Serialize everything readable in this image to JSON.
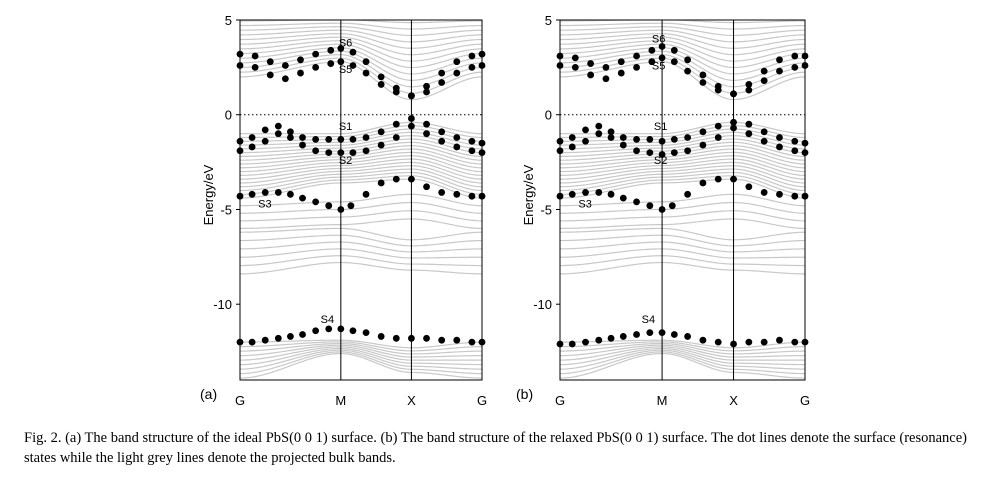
{
  "caption": "Fig. 2. (a) The band structure of the ideal PbS(0 0 1) surface. (b) The band structure of the relaxed PbS(0 0 1) surface. The dot lines denote the surface (resonance) states while the light grey lines denote the projected bulk bands.",
  "colors": {
    "bulk_band": "#c8c8c8",
    "surface_dot": "#000000",
    "axis": "#000000",
    "fermi_line": "#000000"
  },
  "chart_data": [
    {
      "type": "line",
      "panel_label": "(a)",
      "xlabel": "",
      "ylabel": "Energy/eV",
      "ylim": [
        -14,
        5
      ],
      "yticks": [
        5,
        0,
        -5,
        -10
      ],
      "k_points": [
        "G",
        "M",
        "X",
        "G"
      ],
      "k_positions": [
        0,
        1,
        1.7,
        2.4
      ],
      "fermi_level": 0,
      "fermi_line_style": "dotted",
      "bulk_band_groups": [
        {
          "name": "conduction",
          "node_ranges": [
            [
              2.0,
              5.2
            ],
            [
              2.8,
              5.2
            ],
            [
              0.8,
              5.2
            ],
            [
              2.0,
              5.2
            ]
          ],
          "count": 14
        },
        {
          "name": "valence-upper",
          "node_ranges": [
            [
              -4.4,
              -1.0
            ],
            [
              -3.6,
              -1.0
            ],
            [
              -3.4,
              -0.4
            ],
            [
              -4.4,
              -1.0
            ]
          ],
          "count": 18
        },
        {
          "name": "valence-mid",
          "node_ranges": [
            [
              -6.0,
              -4.8
            ],
            [
              -5.8,
              -4.6
            ],
            [
              -5.5,
              -4.2
            ],
            [
              -6.0,
              -4.8
            ]
          ],
          "count": 4
        },
        {
          "name": "valence-lower",
          "node_ranges": [
            [
              -8.4,
              -6.2
            ],
            [
              -7.8,
              -6.0
            ],
            [
              -8.2,
              -6.6
            ],
            [
              -8.4,
              -6.2
            ]
          ],
          "count": 6
        },
        {
          "name": "semicore",
          "node_ranges": [
            [
              -13.9,
              -12.0
            ],
            [
              -12.6,
              -11.9
            ],
            [
              -13.6,
              -12.3
            ],
            [
              -13.9,
              -12.0
            ]
          ],
          "count": 9
        }
      ],
      "surface_states": [
        {
          "label": "S6",
          "label_x": 0.98,
          "label_y": 3.6,
          "x": [
            0,
            0.15,
            0.3,
            0.45,
            0.6,
            0.75,
            0.9,
            1.0,
            1.12,
            1.25,
            1.4,
            1.55,
            1.7,
            1.85,
            2.0,
            2.15,
            2.3,
            2.4
          ],
          "y": [
            3.2,
            3.1,
            2.8,
            2.6,
            2.9,
            3.2,
            3.4,
            3.5,
            3.3,
            2.8,
            2.0,
            1.4,
            1.0,
            1.5,
            2.2,
            2.8,
            3.1,
            3.2
          ]
        },
        {
          "label": "S5",
          "label_x": 0.98,
          "label_y": 2.2,
          "x": [
            0,
            0.15,
            0.3,
            0.45,
            0.6,
            0.75,
            0.9,
            1.0,
            1.12,
            1.25,
            1.4,
            1.55,
            1.7,
            1.85,
            2.0,
            2.15,
            2.3,
            2.4
          ],
          "y": [
            2.6,
            2.5,
            2.1,
            1.9,
            2.2,
            2.5,
            2.7,
            2.8,
            2.6,
            2.2,
            1.6,
            1.2,
            1.0,
            1.2,
            1.7,
            2.2,
            2.5,
            2.6
          ]
        },
        {
          "label": "S1",
          "label_x": 0.98,
          "label_y": -0.8,
          "x": [
            0,
            0.12,
            0.25,
            0.38,
            0.5,
            0.62,
            0.75,
            0.88,
            1.0,
            1.12,
            1.25,
            1.4,
            1.55,
            1.7,
            1.85,
            2.0,
            2.15,
            2.3,
            2.4
          ],
          "y": [
            -1.4,
            -1.2,
            -0.8,
            -0.6,
            -0.9,
            -1.2,
            -1.3,
            -1.3,
            -1.3,
            -1.3,
            -1.2,
            -0.9,
            -0.5,
            -0.2,
            -0.5,
            -0.9,
            -1.2,
            -1.4,
            -1.5
          ]
        },
        {
          "label": "S2",
          "label_x": 0.98,
          "label_y": -2.6,
          "x": [
            0,
            0.12,
            0.25,
            0.38,
            0.5,
            0.62,
            0.75,
            0.88,
            1.0,
            1.12,
            1.25,
            1.4,
            1.55,
            1.7,
            1.85,
            2.0,
            2.15,
            2.3,
            2.4
          ],
          "y": [
            -1.9,
            -1.7,
            -1.4,
            -1.0,
            -1.2,
            -1.6,
            -1.9,
            -2.0,
            -2.0,
            -2.0,
            -1.9,
            -1.6,
            -1.2,
            -0.6,
            -1.0,
            -1.4,
            -1.7,
            -1.9,
            -2.0
          ]
        },
        {
          "label": "S3",
          "label_x": 0.18,
          "label_y": -4.9,
          "x": [
            0,
            0.12,
            0.25,
            0.38,
            0.5,
            0.62,
            0.75,
            0.88,
            1.0,
            1.1,
            1.25,
            1.4,
            1.55,
            1.7,
            1.85,
            2.0,
            2.15,
            2.3,
            2.4
          ],
          "y": [
            -4.3,
            -4.2,
            -4.1,
            -4.1,
            -4.2,
            -4.4,
            -4.6,
            -4.8,
            -5.0,
            -4.8,
            -4.2,
            -3.6,
            -3.4,
            -3.4,
            -3.8,
            -4.1,
            -4.2,
            -4.3,
            -4.3
          ]
        },
        {
          "label": "S4",
          "label_x": 0.8,
          "label_y": -11.0,
          "x": [
            0,
            0.12,
            0.25,
            0.38,
            0.5,
            0.62,
            0.75,
            0.88,
            1.0,
            1.12,
            1.25,
            1.4,
            1.55,
            1.7,
            1.85,
            2.0,
            2.15,
            2.3,
            2.4
          ],
          "y": [
            -12.0,
            -12.0,
            -11.9,
            -11.8,
            -11.7,
            -11.6,
            -11.4,
            -11.3,
            -11.3,
            -11.4,
            -11.5,
            -11.7,
            -11.8,
            -11.8,
            -11.8,
            -11.9,
            -11.9,
            -12.0,
            -12.0
          ]
        }
      ]
    },
    {
      "type": "line",
      "panel_label": "(b)",
      "xlabel": "",
      "ylabel": "Energy/eV",
      "ylim": [
        -14,
        5
      ],
      "yticks": [
        5,
        0,
        -5,
        -10
      ],
      "k_points": [
        "G",
        "M",
        "X",
        "G"
      ],
      "k_positions": [
        0,
        1,
        1.7,
        2.4
      ],
      "fermi_level": 0,
      "fermi_line_style": "dotted",
      "bulk_band_groups": [
        {
          "name": "conduction",
          "node_ranges": [
            [
              2.0,
              5.2
            ],
            [
              2.8,
              5.2
            ],
            [
              0.8,
              5.2
            ],
            [
              2.0,
              5.2
            ]
          ],
          "count": 14
        },
        {
          "name": "valence-upper",
          "node_ranges": [
            [
              -4.4,
              -1.0
            ],
            [
              -3.6,
              -1.0
            ],
            [
              -3.4,
              -0.4
            ],
            [
              -4.4,
              -1.0
            ]
          ],
          "count": 18
        },
        {
          "name": "valence-mid",
          "node_ranges": [
            [
              -6.0,
              -4.8
            ],
            [
              -5.8,
              -4.6
            ],
            [
              -5.5,
              -4.2
            ],
            [
              -6.0,
              -4.8
            ]
          ],
          "count": 4
        },
        {
          "name": "valence-lower",
          "node_ranges": [
            [
              -8.4,
              -6.2
            ],
            [
              -7.8,
              -6.0
            ],
            [
              -8.2,
              -6.6
            ],
            [
              -8.4,
              -6.2
            ]
          ],
          "count": 6
        },
        {
          "name": "semicore",
          "node_ranges": [
            [
              -13.9,
              -12.0
            ],
            [
              -12.6,
              -11.9
            ],
            [
              -13.6,
              -12.3
            ],
            [
              -13.9,
              -12.0
            ]
          ],
          "count": 9
        }
      ],
      "surface_states": [
        {
          "label": "S6",
          "label_x": 0.9,
          "label_y": 3.8,
          "x": [
            0,
            0.15,
            0.3,
            0.45,
            0.6,
            0.75,
            0.9,
            1.0,
            1.12,
            1.25,
            1.4,
            1.55,
            1.7,
            1.85,
            2.0,
            2.15,
            2.3,
            2.4
          ],
          "y": [
            3.1,
            3.0,
            2.7,
            2.5,
            2.8,
            3.1,
            3.4,
            3.6,
            3.4,
            2.9,
            2.1,
            1.5,
            1.1,
            1.6,
            2.3,
            2.9,
            3.1,
            3.1
          ]
        },
        {
          "label": "S5",
          "label_x": 0.9,
          "label_y": 2.4,
          "x": [
            0,
            0.15,
            0.3,
            0.45,
            0.6,
            0.75,
            0.9,
            1.0,
            1.12,
            1.25,
            1.4,
            1.55,
            1.7,
            1.85,
            2.0,
            2.15,
            2.3,
            2.4
          ],
          "y": [
            2.6,
            2.5,
            2.1,
            1.9,
            2.2,
            2.5,
            2.8,
            3.0,
            2.8,
            2.3,
            1.7,
            1.3,
            1.1,
            1.3,
            1.8,
            2.3,
            2.5,
            2.6
          ]
        },
        {
          "label": "S1",
          "label_x": 0.92,
          "label_y": -0.8,
          "x": [
            0,
            0.12,
            0.25,
            0.38,
            0.5,
            0.62,
            0.75,
            0.88,
            1.0,
            1.12,
            1.25,
            1.4,
            1.55,
            1.7,
            1.85,
            2.0,
            2.15,
            2.3,
            2.4
          ],
          "y": [
            -1.4,
            -1.2,
            -0.8,
            -0.6,
            -0.9,
            -1.2,
            -1.3,
            -1.3,
            -1.4,
            -1.3,
            -1.2,
            -0.9,
            -0.6,
            -0.4,
            -0.5,
            -0.9,
            -1.2,
            -1.4,
            -1.5
          ]
        },
        {
          "label": "S2",
          "label_x": 0.92,
          "label_y": -2.6,
          "x": [
            0,
            0.12,
            0.25,
            0.38,
            0.5,
            0.62,
            0.75,
            0.88,
            1.0,
            1.12,
            1.25,
            1.4,
            1.55,
            1.7,
            1.85,
            2.0,
            2.15,
            2.3,
            2.4
          ],
          "y": [
            -1.9,
            -1.7,
            -1.4,
            -1.0,
            -1.2,
            -1.6,
            -1.9,
            -2.0,
            -2.1,
            -2.0,
            -1.9,
            -1.6,
            -1.2,
            -0.7,
            -1.0,
            -1.4,
            -1.7,
            -1.9,
            -2.0
          ]
        },
        {
          "label": "S3",
          "label_x": 0.18,
          "label_y": -4.9,
          "x": [
            0,
            0.12,
            0.25,
            0.38,
            0.5,
            0.62,
            0.75,
            0.88,
            1.0,
            1.1,
            1.25,
            1.4,
            1.55,
            1.7,
            1.85,
            2.0,
            2.15,
            2.3,
            2.4
          ],
          "y": [
            -4.3,
            -4.2,
            -4.1,
            -4.1,
            -4.2,
            -4.4,
            -4.6,
            -4.8,
            -5.0,
            -4.8,
            -4.2,
            -3.6,
            -3.4,
            -3.4,
            -3.8,
            -4.1,
            -4.2,
            -4.3,
            -4.3
          ]
        },
        {
          "label": "S4",
          "label_x": 0.8,
          "label_y": -11.0,
          "x": [
            0,
            0.12,
            0.25,
            0.38,
            0.5,
            0.62,
            0.75,
            0.88,
            1.0,
            1.12,
            1.25,
            1.4,
            1.55,
            1.7,
            1.85,
            2.0,
            2.15,
            2.3,
            2.4
          ],
          "y": [
            -12.1,
            -12.1,
            -12.0,
            -11.9,
            -11.8,
            -11.7,
            -11.6,
            -11.5,
            -11.5,
            -11.6,
            -11.7,
            -11.9,
            -12.0,
            -12.1,
            -12.0,
            -12.0,
            -11.9,
            -12.0,
            -12.0
          ]
        }
      ]
    }
  ]
}
